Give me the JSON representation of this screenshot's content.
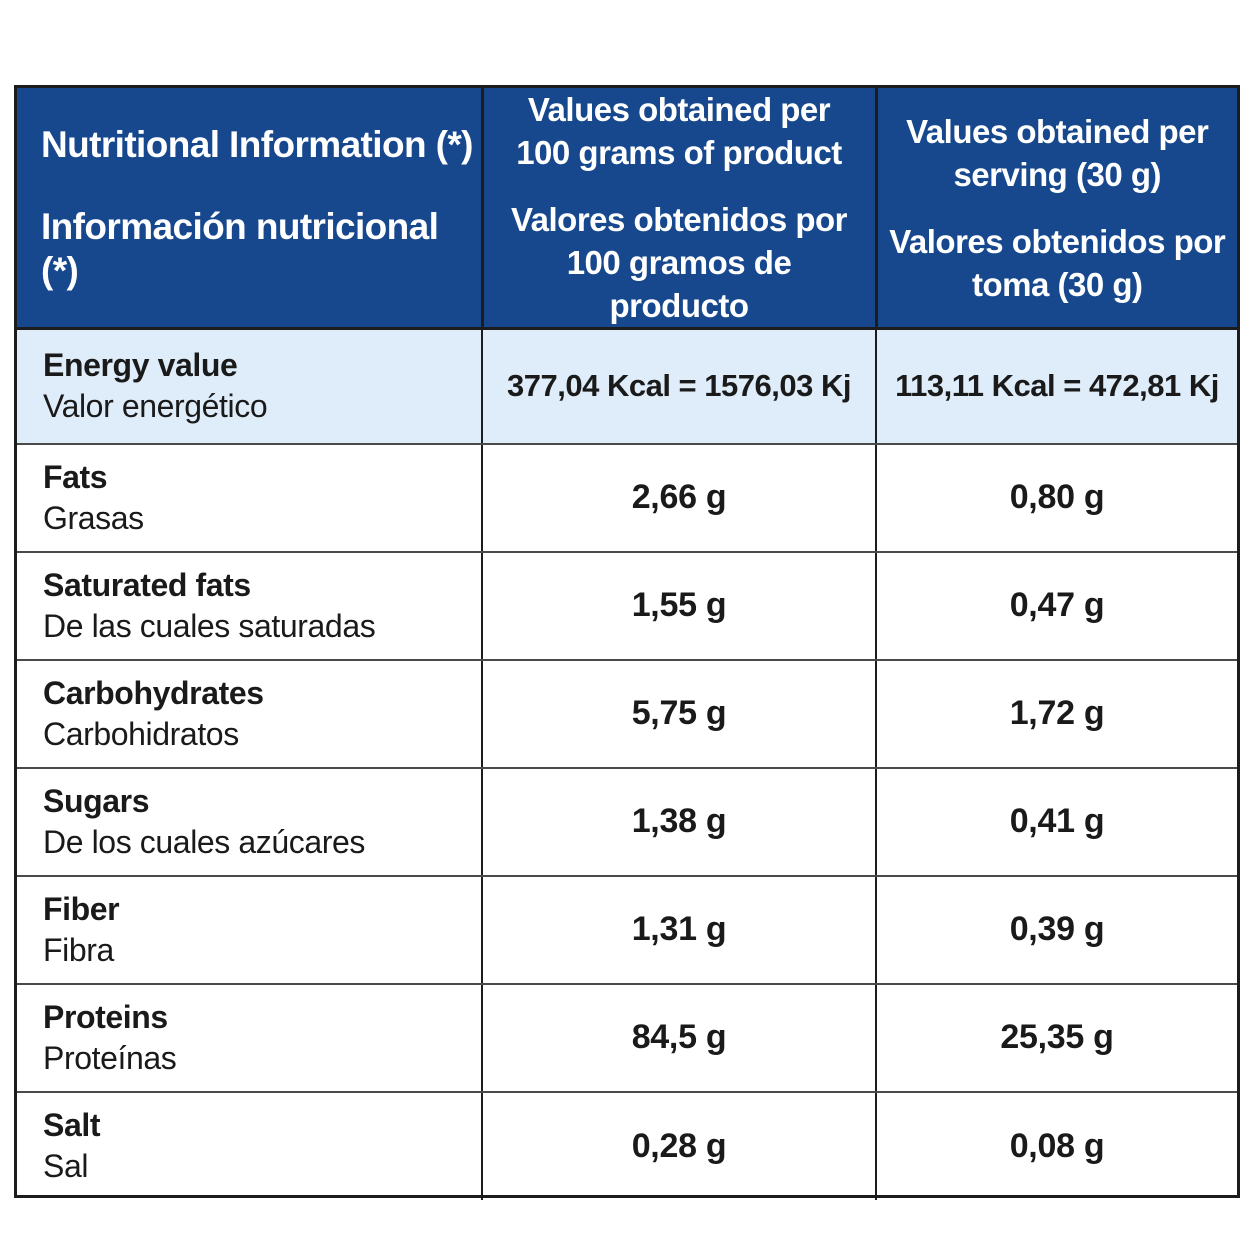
{
  "header": {
    "col1": {
      "en": "Nutritional Information (*)",
      "es": "Información nutricional (*)"
    },
    "col2": {
      "en_line1": "Values obtained per",
      "en_line2": "100 grams of product",
      "es_line1": "Valores obtenidos por",
      "es_line2": "100 gramos de producto"
    },
    "col3": {
      "en_line1": "Values obtained per",
      "en_line2": "serving (30 g)",
      "es_line1": "Valores obtenidos por",
      "es_line2": "toma (30 g)"
    }
  },
  "rows": [
    {
      "en": "Energy value",
      "es": "Valor energético",
      "per100": "377,04 Kcal = 1576,03 Kj",
      "serving": "113,11 Kcal = 472,81 Kj"
    },
    {
      "en": "Fats",
      "es": "Grasas",
      "per100": "2,66 g",
      "serving": "0,80 g"
    },
    {
      "en": "Saturated fats",
      "es": "De las cuales saturadas",
      "per100": "1,55 g",
      "serving": "0,47 g"
    },
    {
      "en": "Carbohydrates",
      "es": "Carbohidratos",
      "per100": "5,75 g",
      "serving": "1,72 g"
    },
    {
      "en": "Sugars",
      "es": "De los cuales azúcares",
      "per100": "1,38 g",
      "serving": "0,41 g"
    },
    {
      "en": "Fiber",
      "es": "Fibra",
      "per100": "1,31 g",
      "serving": "0,39 g"
    },
    {
      "en": "Proteins",
      "es": "Proteínas",
      "per100": "84,5 g",
      "serving": "25,35 g"
    },
    {
      "en": "Salt",
      "es": "Sal",
      "per100": "0,28 g",
      "serving": "0,08 g"
    }
  ],
  "colors": {
    "header_bg": "#17488d",
    "energy_row_bg": "#deedf9",
    "border": "#1c1c1c"
  }
}
